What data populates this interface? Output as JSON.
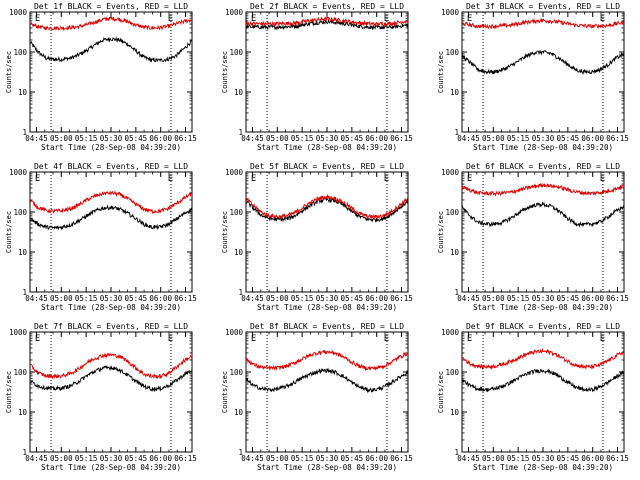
{
  "colors": {
    "events": "#000000",
    "lld": "#e00000",
    "frame": "#000000",
    "background": "#ffffff"
  },
  "chart_data": [
    {
      "type": "line",
      "title": "Det 1f BLACK = Events, RED = LLD",
      "ylabel": "Counts/sec",
      "xlabel": "Start Time (28-Sep-08 04:39:20)",
      "x_tick_labels": [
        "04:45",
        "05:00",
        "05:15",
        "05:30",
        "05:45",
        "06:00",
        "06:15"
      ],
      "y_tick_labels": [
        "1",
        "10",
        "100",
        "1000"
      ],
      "yscale": "log",
      "ylim": [
        1,
        1000
      ],
      "markers": [
        "E",
        "E"
      ],
      "series": [
        {
          "color": "#000000",
          "t": [
            0,
            5,
            10,
            15,
            20,
            25,
            30,
            35,
            40,
            45,
            50,
            55,
            60,
            65,
            70,
            75,
            80,
            85,
            90,
            95,
            100
          ],
          "values": [
            180,
            100,
            70,
            65,
            66,
            70,
            85,
            110,
            150,
            200,
            215,
            200,
            160,
            110,
            75,
            63,
            62,
            66,
            80,
            120,
            190
          ]
        },
        {
          "color": "#e00000",
          "t": [
            0,
            5,
            10,
            15,
            20,
            25,
            30,
            35,
            40,
            45,
            50,
            55,
            60,
            65,
            70,
            75,
            80,
            85,
            90,
            95,
            100
          ],
          "values": [
            500,
            430,
            400,
            400,
            400,
            410,
            430,
            480,
            560,
            650,
            690,
            660,
            580,
            480,
            420,
            400,
            405,
            440,
            500,
            580,
            650
          ]
        }
      ]
    },
    {
      "type": "line",
      "title": "Det 2f BLACK = Events, RED = LLD",
      "ylabel": "Counts/sec",
      "xlabel": "Start Time (28-Sep-08 04:39:20)",
      "x_tick_labels": [
        "04:45",
        "05:00",
        "05:15",
        "05:30",
        "05:45",
        "06:00",
        "06:15"
      ],
      "y_tick_labels": [
        "1",
        "10",
        "100",
        "1000"
      ],
      "yscale": "log",
      "ylim": [
        1,
        1000
      ],
      "markers": [
        "E",
        "E"
      ],
      "series": [
        {
          "color": "#000000",
          "t": [
            0,
            10,
            20,
            30,
            40,
            50,
            60,
            70,
            80,
            90,
            100
          ],
          "values": [
            430,
            420,
            420,
            440,
            520,
            580,
            520,
            440,
            410,
            420,
            470
          ]
        },
        {
          "color": "#e00000",
          "t": [
            0,
            10,
            20,
            30,
            40,
            50,
            60,
            70,
            80,
            90,
            100
          ],
          "values": [
            520,
            510,
            510,
            530,
            610,
            680,
            610,
            530,
            500,
            520,
            600
          ]
        }
      ]
    },
    {
      "type": "line",
      "title": "Det 3f BLACK = Events, RED = LLD",
      "ylabel": "Counts/sec",
      "xlabel": "Start Time (28-Sep-08 04:39:20)",
      "x_tick_labels": [
        "04:45",
        "05:00",
        "05:15",
        "05:30",
        "05:45",
        "06:00",
        "06:15"
      ],
      "y_tick_labels": [
        "1",
        "10",
        "100",
        "1000"
      ],
      "yscale": "log",
      "ylim": [
        1,
        1000
      ],
      "markers": [
        "E",
        "E"
      ],
      "series": [
        {
          "color": "#000000",
          "t": [
            0,
            5,
            10,
            15,
            20,
            25,
            30,
            35,
            40,
            45,
            50,
            55,
            60,
            65,
            70,
            75,
            80,
            85,
            90,
            95,
            100
          ],
          "values": [
            80,
            55,
            36,
            32,
            32,
            36,
            45,
            60,
            80,
            98,
            100,
            92,
            70,
            50,
            36,
            32,
            32,
            36,
            48,
            70,
            90
          ]
        },
        {
          "color": "#e00000",
          "t": [
            0,
            10,
            20,
            30,
            40,
            50,
            60,
            70,
            80,
            90,
            100
          ],
          "values": [
            520,
            440,
            440,
            470,
            560,
            620,
            560,
            470,
            440,
            460,
            560
          ]
        }
      ]
    },
    {
      "type": "line",
      "title": "Det 4f BLACK = Events, RED = LLD",
      "ylabel": "Counts/sec",
      "xlabel": "Start Time (28-Sep-08 04:39:20)",
      "x_tick_labels": [
        "04:45",
        "05:00",
        "05:15",
        "05:30",
        "05:45",
        "06:00",
        "06:15"
      ],
      "y_tick_labels": [
        "1",
        "10",
        "100",
        "1000"
      ],
      "yscale": "log",
      "ylim": [
        1,
        1000
      ],
      "markers": [
        "E",
        "E"
      ],
      "series": [
        {
          "color": "#000000",
          "t": [
            0,
            5,
            10,
            15,
            20,
            25,
            30,
            35,
            40,
            45,
            50,
            55,
            60,
            65,
            70,
            75,
            80,
            85,
            90,
            95,
            100
          ],
          "values": [
            70,
            50,
            42,
            40,
            42,
            48,
            60,
            80,
            105,
            125,
            130,
            120,
            95,
            70,
            50,
            42,
            42,
            48,
            65,
            90,
            120
          ]
        },
        {
          "color": "#e00000",
          "t": [
            0,
            5,
            10,
            15,
            20,
            25,
            30,
            35,
            40,
            45,
            50,
            55,
            60,
            65,
            70,
            75,
            80,
            85,
            90,
            95,
            100
          ],
          "values": [
            200,
            130,
            110,
            105,
            108,
            120,
            150,
            200,
            250,
            290,
            300,
            280,
            220,
            160,
            120,
            105,
            105,
            120,
            160,
            220,
            290
          ]
        }
      ]
    },
    {
      "type": "line",
      "title": "Det 5f BLACK = Events, RED = LLD",
      "ylabel": "Counts/sec",
      "xlabel": "Start Time (28-Sep-08 04:39:20)",
      "x_tick_labels": [
        "04:45",
        "05:00",
        "05:15",
        "05:30",
        "05:45",
        "06:00",
        "06:15"
      ],
      "y_tick_labels": [
        "1",
        "10",
        "100",
        "1000"
      ],
      "yscale": "log",
      "ylim": [
        1,
        1000
      ],
      "markers": [
        "E",
        "E"
      ],
      "series": [
        {
          "color": "#000000",
          "t": [
            0,
            5,
            10,
            15,
            20,
            25,
            30,
            35,
            40,
            45,
            50,
            55,
            60,
            65,
            70,
            75,
            80,
            85,
            90,
            95,
            100
          ],
          "values": [
            190,
            120,
            80,
            68,
            65,
            68,
            80,
            110,
            150,
            190,
            205,
            190,
            150,
            105,
            78,
            66,
            64,
            68,
            90,
            130,
            190
          ]
        },
        {
          "color": "#e00000",
          "t": [
            0,
            5,
            10,
            15,
            20,
            25,
            30,
            35,
            40,
            45,
            50,
            55,
            60,
            65,
            70,
            75,
            80,
            85,
            90,
            95,
            100
          ],
          "values": [
            220,
            140,
            95,
            80,
            76,
            80,
            95,
            130,
            175,
            220,
            240,
            220,
            175,
            125,
            92,
            78,
            76,
            80,
            105,
            150,
            220
          ]
        }
      ]
    },
    {
      "type": "line",
      "title": "Det 6f BLACK = Events, RED = LLD",
      "ylabel": "Counts/sec",
      "xlabel": "Start Time (28-Sep-08 04:39:20)",
      "x_tick_labels": [
        "04:45",
        "05:00",
        "05:15",
        "05:30",
        "05:45",
        "06:00",
        "06:15"
      ],
      "y_tick_labels": [
        "1",
        "10",
        "100",
        "1000"
      ],
      "yscale": "log",
      "ylim": [
        1,
        1000
      ],
      "markers": [
        "E",
        "E"
      ],
      "series": [
        {
          "color": "#000000",
          "t": [
            0,
            5,
            10,
            15,
            20,
            25,
            30,
            35,
            40,
            45,
            50,
            55,
            60,
            65,
            70,
            75,
            80,
            85,
            90,
            95,
            100
          ],
          "values": [
            130,
            80,
            55,
            50,
            50,
            55,
            70,
            95,
            125,
            150,
            155,
            140,
            105,
            70,
            52,
            48,
            50,
            56,
            75,
            105,
            140
          ]
        },
        {
          "color": "#e00000",
          "t": [
            0,
            10,
            20,
            30,
            40,
            50,
            60,
            70,
            80,
            90,
            100
          ],
          "values": [
            420,
            300,
            290,
            310,
            400,
            480,
            420,
            320,
            290,
            330,
            450
          ]
        }
      ]
    },
    {
      "type": "line",
      "title": "Det 7f BLACK = Events, RED = LLD",
      "ylabel": "Counts/sec",
      "xlabel": "Start Time (28-Sep-08 04:39:20)",
      "x_tick_labels": [
        "04:45",
        "05:00",
        "05:15",
        "05:30",
        "05:45",
        "06:00",
        "06:15"
      ],
      "y_tick_labels": [
        "1",
        "10",
        "100",
        "1000"
      ],
      "yscale": "log",
      "ylim": [
        1,
        1000
      ],
      "markers": [
        "E",
        "E"
      ],
      "series": [
        {
          "color": "#000000",
          "t": [
            0,
            5,
            10,
            15,
            20,
            25,
            30,
            35,
            40,
            45,
            50,
            55,
            60,
            65,
            70,
            75,
            80,
            85,
            90,
            95,
            100
          ],
          "values": [
            60,
            45,
            40,
            38,
            40,
            45,
            58,
            80,
            105,
            125,
            130,
            115,
            85,
            60,
            45,
            38,
            38,
            45,
            60,
            85,
            110
          ]
        },
        {
          "color": "#e00000",
          "t": [
            0,
            5,
            10,
            15,
            20,
            25,
            30,
            35,
            40,
            45,
            50,
            55,
            60,
            65,
            70,
            75,
            80,
            85,
            90,
            95,
            100
          ],
          "values": [
            150,
            95,
            80,
            78,
            80,
            92,
            120,
            170,
            220,
            260,
            270,
            250,
            190,
            130,
            90,
            78,
            78,
            90,
            130,
            190,
            250
          ]
        }
      ]
    },
    {
      "type": "line",
      "title": "Det 8f BLACK = Events, RED = LLD",
      "ylabel": "Counts/sec",
      "xlabel": "Start Time (28-Sep-08 04:39:20)",
      "x_tick_labels": [
        "04:45",
        "05:00",
        "05:15",
        "05:30",
        "05:45",
        "06:00",
        "06:15"
      ],
      "y_tick_labels": [
        "1",
        "10",
        "100",
        "1000"
      ],
      "yscale": "log",
      "ylim": [
        1,
        1000
      ],
      "markers": [
        "E",
        "E"
      ],
      "series": [
        {
          "color": "#000000",
          "t": [
            0,
            5,
            10,
            15,
            20,
            25,
            30,
            35,
            40,
            45,
            50,
            55,
            60,
            65,
            70,
            75,
            80,
            85,
            90,
            95,
            100
          ],
          "values": [
            65,
            45,
            38,
            36,
            38,
            44,
            55,
            72,
            90,
            105,
            110,
            100,
            78,
            56,
            42,
            36,
            36,
            42,
            55,
            75,
            100
          ]
        },
        {
          "color": "#e00000",
          "t": [
            0,
            5,
            10,
            15,
            20,
            25,
            30,
            35,
            40,
            45,
            50,
            55,
            60,
            65,
            70,
            75,
            80,
            85,
            90,
            95,
            100
          ],
          "values": [
            210,
            150,
            130,
            125,
            128,
            140,
            170,
            215,
            270,
            310,
            320,
            300,
            240,
            180,
            140,
            125,
            125,
            140,
            180,
            240,
            300
          ]
        }
      ]
    },
    {
      "type": "line",
      "title": "Det 9f BLACK = Events, RED = LLD",
      "ylabel": "Counts/sec",
      "xlabel": "Start Time (28-Sep-08 04:39:20)",
      "x_tick_labels": [
        "04:45",
        "05:00",
        "05:15",
        "05:30",
        "05:45",
        "06:00",
        "06:15"
      ],
      "y_tick_labels": [
        "1",
        "10",
        "100",
        "1000"
      ],
      "yscale": "log",
      "ylim": [
        1,
        1000
      ],
      "markers": [
        "E",
        "E"
      ],
      "series": [
        {
          "color": "#000000",
          "t": [
            0,
            5,
            10,
            15,
            20,
            25,
            30,
            35,
            40,
            45,
            50,
            55,
            60,
            65,
            70,
            75,
            80,
            85,
            90,
            95,
            100
          ],
          "values": [
            65,
            45,
            38,
            36,
            38,
            44,
            55,
            72,
            90,
            105,
            110,
            100,
            78,
            56,
            42,
            36,
            36,
            42,
            55,
            75,
            100
          ]
        },
        {
          "color": "#e00000",
          "t": [
            0,
            5,
            10,
            15,
            20,
            25,
            30,
            35,
            40,
            45,
            50,
            55,
            60,
            65,
            70,
            75,
            80,
            85,
            90,
            95,
            100
          ],
          "values": [
            230,
            160,
            140,
            135,
            140,
            155,
            185,
            230,
            280,
            320,
            330,
            310,
            250,
            190,
            150,
            135,
            135,
            150,
            190,
            250,
            320
          ]
        }
      ]
    }
  ]
}
